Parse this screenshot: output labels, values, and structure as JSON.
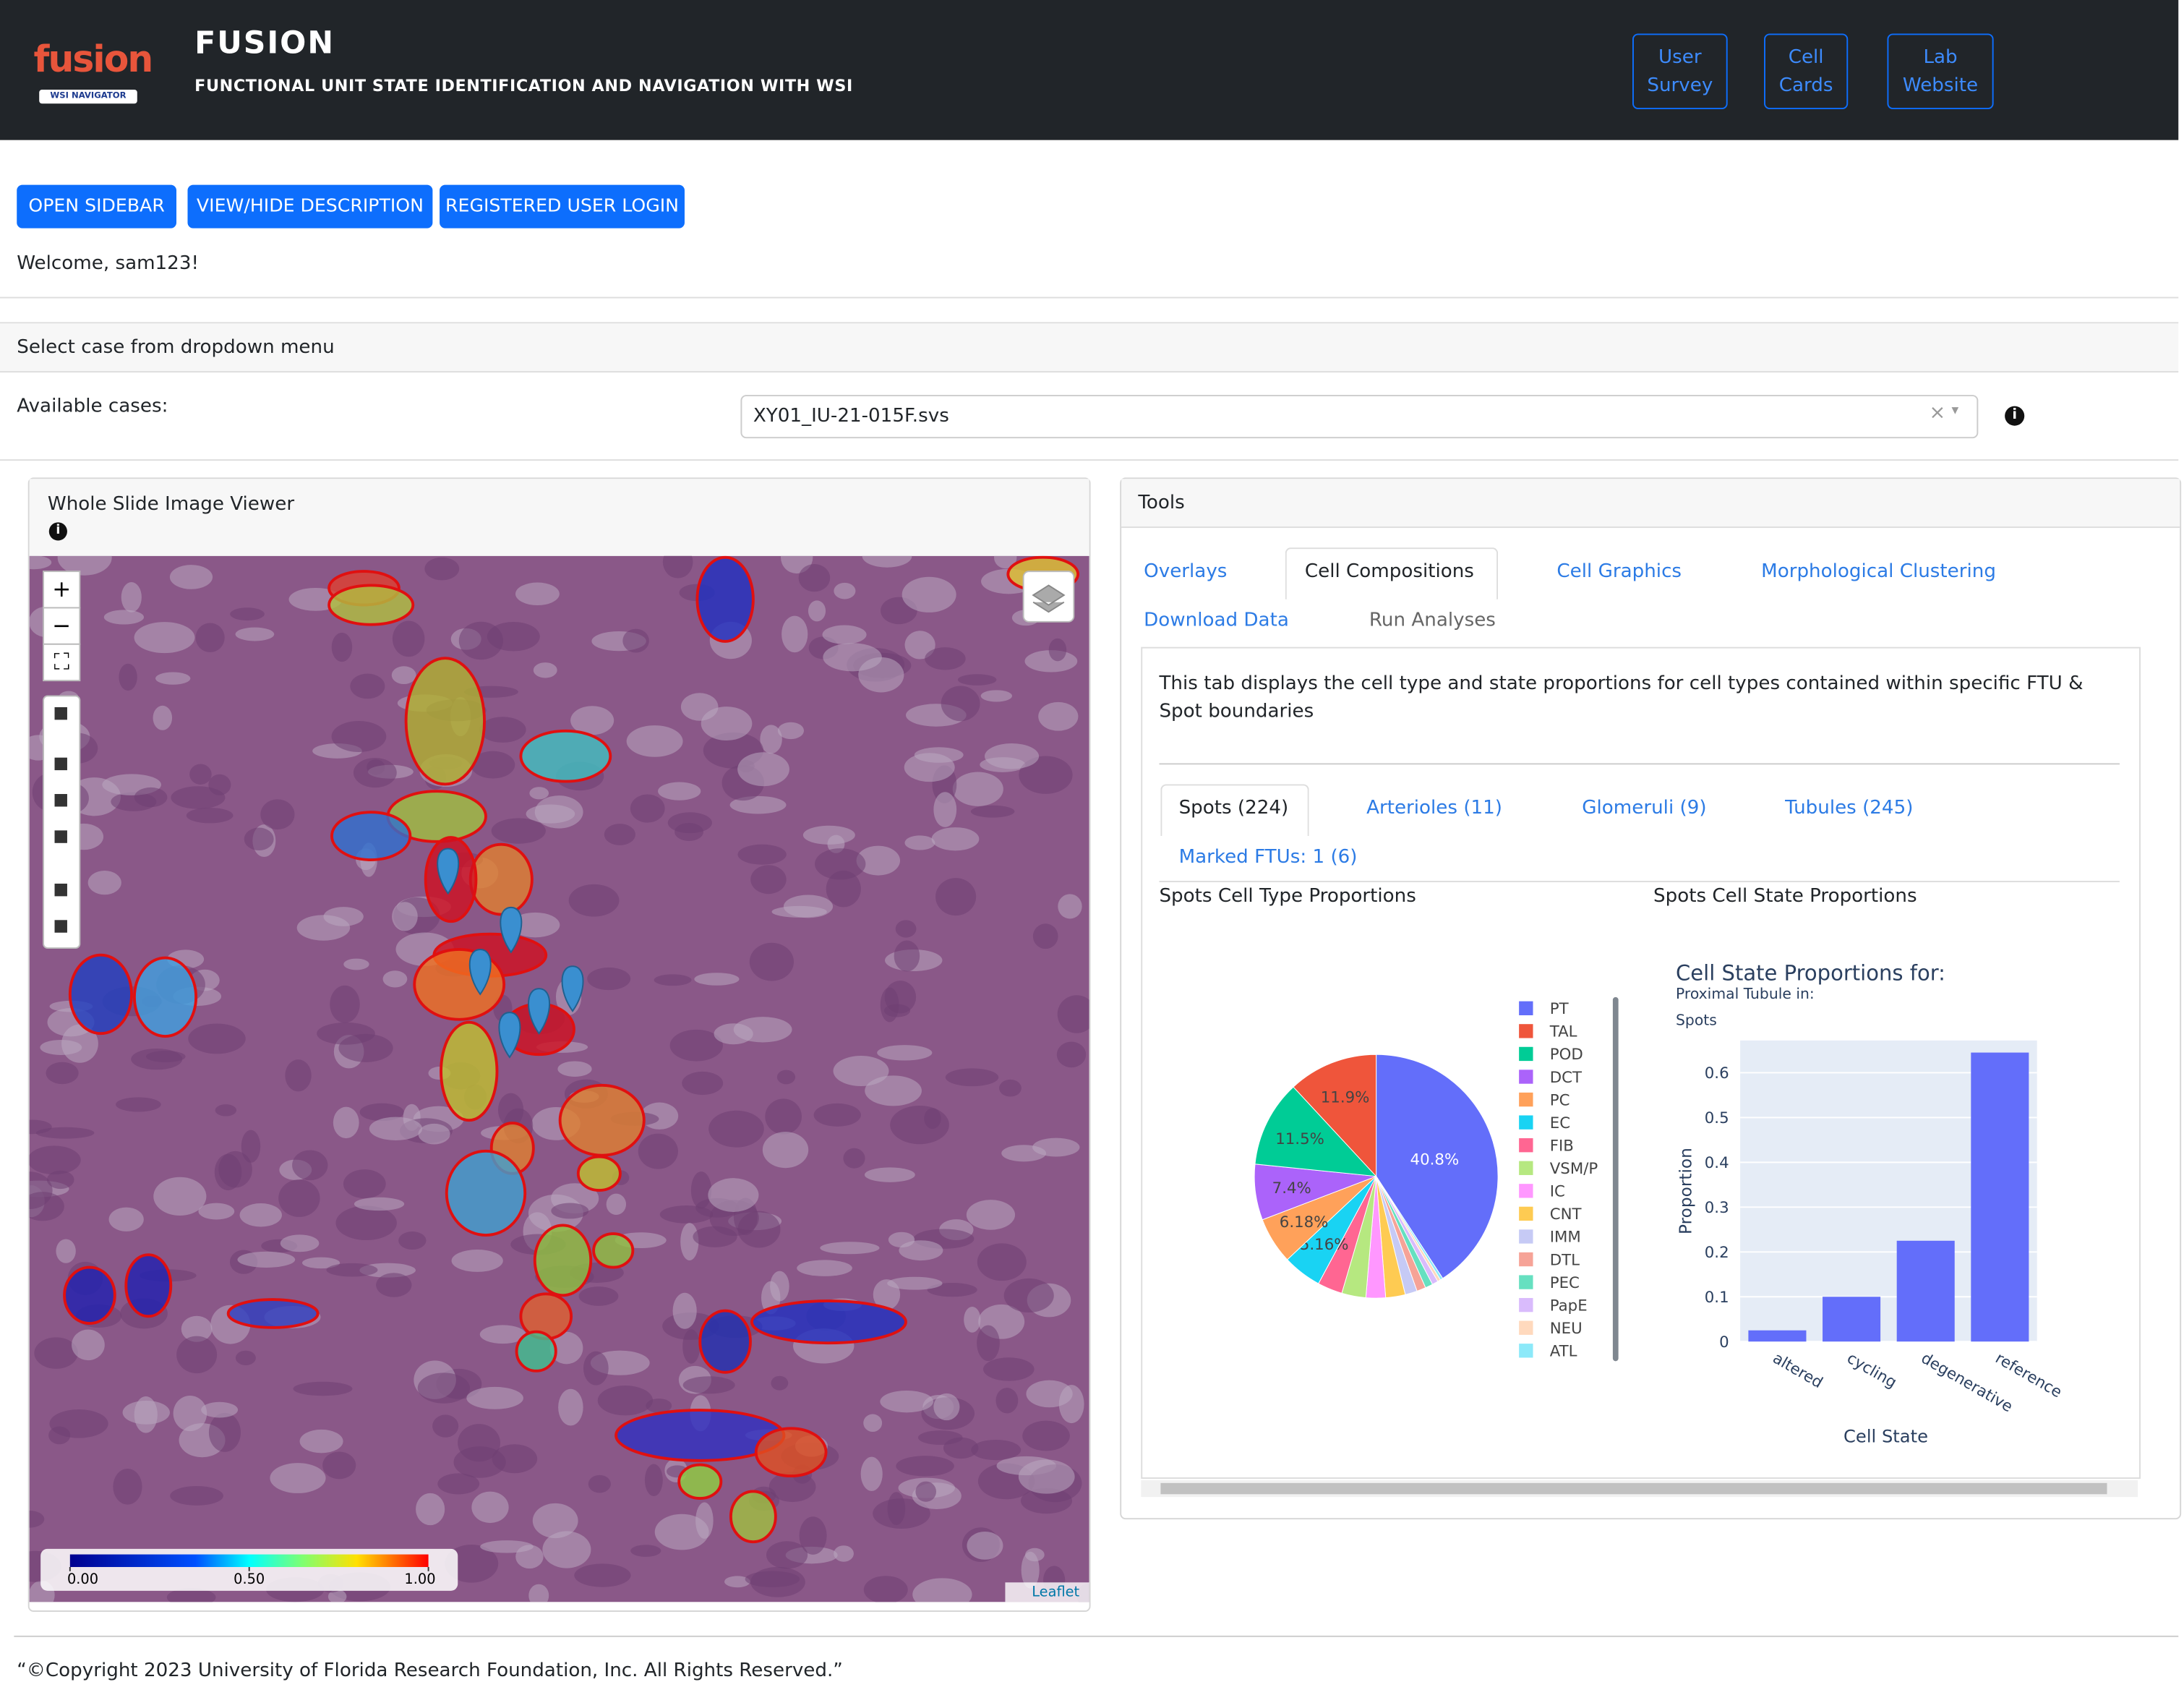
{
  "header": {
    "logo": "fusion",
    "logo_badge": "WSI NAVIGATOR",
    "title": "FUSION",
    "subtitle": "FUNCTIONAL UNIT STATE IDENTIFICATION AND NAVIGATION WITH WSI",
    "links": [
      "User Survey",
      "Cell Cards",
      "Lab Website"
    ]
  },
  "toolbar": {
    "buttons": [
      "OPEN SIDEBAR",
      "VIEW/HIDE DESCRIPTION",
      "REGISTERED USER LOGIN"
    ],
    "welcome": "Welcome, sam123!"
  },
  "case_select": {
    "header": "Select case from dropdown menu",
    "label": "Available cases:",
    "selected": "XY01_IU-21-015F.svs"
  },
  "viewer": {
    "title": "Whole Slide Image Viewer",
    "colorbar_ticks": [
      {
        "value": 0,
        "label": "0.00"
      },
      {
        "value": 0.5,
        "label": "0.50"
      },
      {
        "value": 1,
        "label": "1.00"
      }
    ],
    "attribution": "Leaflet"
  },
  "tools": {
    "title": "Tools",
    "tabs": [
      "Overlays",
      "Cell Compositions",
      "Cell Graphics",
      "Morphological Clustering",
      "Download Data",
      "Run Analyses"
    ],
    "description": "This tab displays the cell type and state proportions for cell types contained within specific FTU & Spot boundaries",
    "sub_tabs": [
      "Spots (224)",
      "Arterioles (11)",
      "Glomeruli (9)",
      "Tubules (245)",
      "Marked FTUs: 1 (6)"
    ],
    "pie_heading": "Spots Cell Type Proportions",
    "bar_heading": "Spots Cell State Proportions"
  },
  "chart_data": [
    {
      "type": "pie",
      "categories": [
        "PT",
        "TAL",
        "POD",
        "DCT",
        "PC",
        "EC",
        "FIB",
        "VSM/P",
        "IC",
        "CNT",
        "IMM",
        "DTL",
        "PEC",
        "PapE",
        "NEU",
        "ATL"
      ],
      "values": [
        40.8,
        11.9,
        11.5,
        7.4,
        6.18,
        5.16,
        3.3,
        3.2,
        2.6,
        2.6,
        1.6,
        1.2,
        1.0,
        0.8,
        0.4,
        0.36
      ],
      "value_labels": [
        "40.8%",
        "11.9%",
        "11.5%",
        "7.4%",
        "6.18%",
        "5.16%",
        null,
        null,
        null,
        null,
        null,
        null,
        null,
        null,
        null,
        null
      ],
      "colors": [
        "#636efa",
        "#ef553b",
        "#00cc96",
        "#ab63fa",
        "#ffa15a",
        "#19d3f3",
        "#ff6692",
        "#b6e880",
        "#ff97ff",
        "#fecb52",
        "#c6caf5",
        "#f6a397",
        "#66e0c0",
        "#d9bbfc",
        "#ffd9bd",
        "#8ce9f9"
      ],
      "legend": "right"
    },
    {
      "type": "bar",
      "title": "Cell State Proportions for:",
      "subtitle": [
        "Proximal Tubule in:",
        "Spots"
      ],
      "categories": [
        "altered",
        "cycling",
        "degenerative",
        "reference"
      ],
      "values": [
        0.025,
        0.1,
        0.225,
        0.645
      ],
      "color": "#636efa",
      "xlabel": "Cell State",
      "ylabel": "Proportion",
      "ylim": [
        0,
        0.672
      ],
      "yticks": [
        0,
        0.1,
        0.2,
        0.3,
        0.4,
        0.5,
        0.6
      ],
      "grid": true
    }
  ],
  "footer": "“©Copyright 2023 University of Florida Research Foundation, Inc. All Rights Reserved.”"
}
